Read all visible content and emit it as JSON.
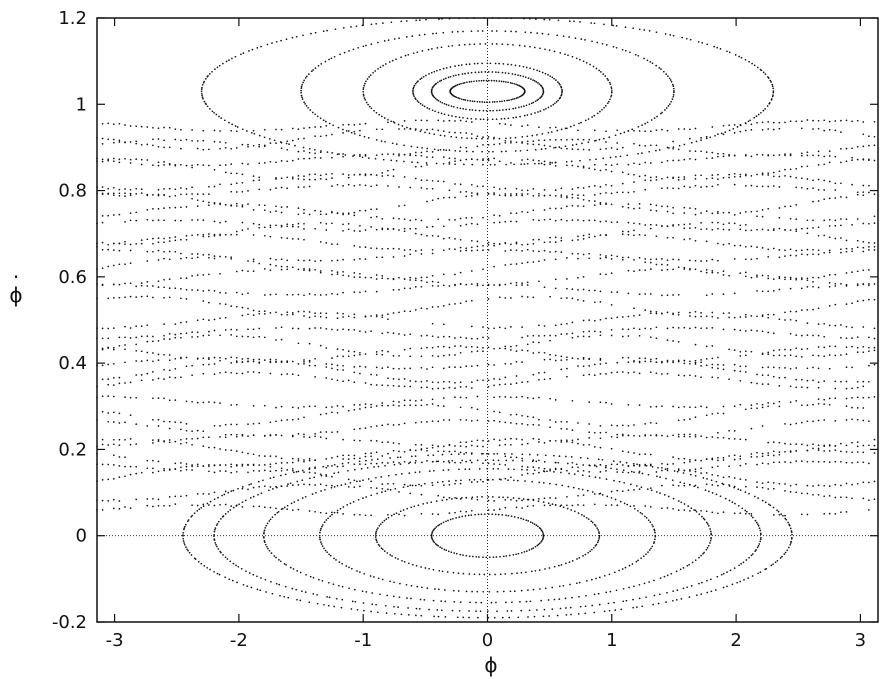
{
  "chart_data": {
    "type": "scatter",
    "title": "",
    "xlabel": "ϕ",
    "ylabel": "ϕ",
    "ylabel_overdot": "·",
    "xlim": [
      -3.14159,
      3.14159
    ],
    "ylim": [
      -0.2,
      1.2
    ],
    "xticks": [
      -3,
      -2,
      -1,
      0,
      1,
      2,
      3
    ],
    "xtick_labels": [
      "-3",
      "-2",
      "-1",
      "0",
      "1",
      "2",
      "3"
    ],
    "yticks": [
      -0.2,
      0,
      0.2,
      0.4,
      0.6,
      0.8,
      1,
      1.2
    ],
    "ytick_labels": [
      "-0.2",
      "0",
      "0.2",
      "0.4",
      "0.6",
      "0.8",
      "1",
      "1.2"
    ],
    "grid": false,
    "reference_lines": [
      "x = 0",
      "y = 0"
    ],
    "marker": "dot",
    "color": "#111111",
    "series": [
      {
        "island_center": [
          0,
          0
        ],
        "orbits": [
          {
            "kind": "closed",
            "rx": 0.45,
            "ry": 0.05
          },
          {
            "kind": "closed",
            "rx": 0.9,
            "ry": 0.09
          },
          {
            "kind": "closed",
            "rx": 1.35,
            "ry": 0.13
          },
          {
            "kind": "closed",
            "rx": 1.8,
            "ry": 0.155
          },
          {
            "kind": "closed",
            "rx": 2.2,
            "ry": 0.175
          },
          {
            "kind": "closed",
            "rx": 2.45,
            "ry": 0.19
          }
        ]
      },
      {
        "island_center": [
          0,
          1.03
        ],
        "orbits": [
          {
            "kind": "closed",
            "rx": 0.3,
            "ry": 0.025
          },
          {
            "kind": "closed",
            "rx": 0.45,
            "ry": 0.045
          },
          {
            "kind": "closed",
            "rx": 0.6,
            "ry": 0.065
          },
          {
            "kind": "closed",
            "rx": 1.0,
            "ry": 0.11
          },
          {
            "kind": "closed",
            "rx": 1.5,
            "ry": 0.14
          },
          {
            "kind": "closed",
            "rx": 2.3,
            "ry": 0.17
          }
        ]
      },
      {
        "kind": "rotational",
        "y_levels": [
          0.06,
          0.1,
          0.14,
          0.16,
          0.18,
          0.2,
          0.22,
          0.25,
          0.28,
          0.31,
          0.36,
          0.38,
          0.4,
          0.42,
          0.44,
          0.47,
          0.5,
          0.53,
          0.57,
          0.6,
          0.62,
          0.65,
          0.68,
          0.7,
          0.72,
          0.75,
          0.77,
          0.8,
          0.82,
          0.85,
          0.87,
          0.9,
          0.92,
          0.95
        ]
      }
    ]
  }
}
